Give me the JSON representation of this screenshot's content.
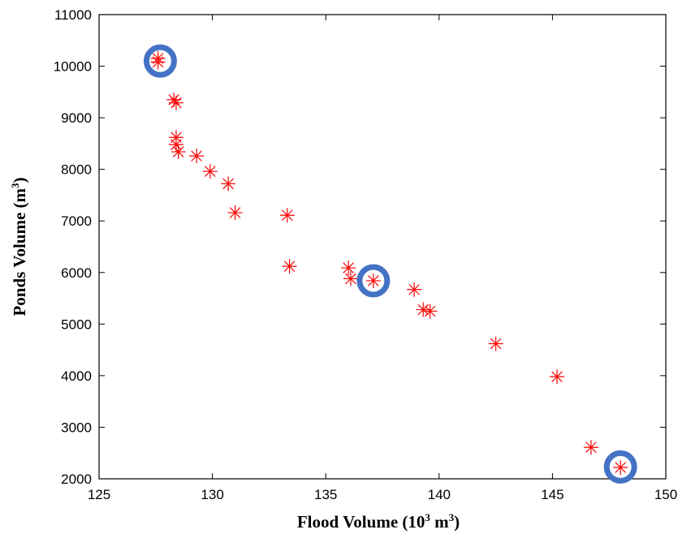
{
  "chart_data": {
    "type": "scatter",
    "xlabel_main": "Flood Volume (10",
    "xlabel_sup": "3",
    "xlabel_rest": " m",
    "xlabel_sup2": "3",
    "xlabel_end": ")",
    "ylabel_main": "Ponds Volume (m",
    "ylabel_sup": "3",
    "ylabel_end": ")",
    "xlim": [
      125,
      150
    ],
    "ylim": [
      2000,
      11000
    ],
    "xticks": [
      "125",
      "130",
      "135",
      "140",
      "145",
      "150"
    ],
    "yticks": [
      "2000",
      "3000",
      "4000",
      "5000",
      "6000",
      "7000",
      "8000",
      "9000",
      "10000",
      "11000"
    ],
    "grid": false,
    "marker": "asterisk",
    "marker_color": "#ff0000",
    "highlight_color": "#4472c4",
    "points": [
      {
        "x": 127.6,
        "y": 10150
      },
      {
        "x": 127.6,
        "y": 10080
      },
      {
        "x": 128.3,
        "y": 9350
      },
      {
        "x": 128.4,
        "y": 9290
      },
      {
        "x": 128.4,
        "y": 8620
      },
      {
        "x": 128.4,
        "y": 8480
      },
      {
        "x": 128.5,
        "y": 8340
      },
      {
        "x": 129.3,
        "y": 8260
      },
      {
        "x": 129.9,
        "y": 7960
      },
      {
        "x": 130.7,
        "y": 7720
      },
      {
        "x": 131.0,
        "y": 7160
      },
      {
        "x": 133.3,
        "y": 7110
      },
      {
        "x": 133.4,
        "y": 6120
      },
      {
        "x": 136.0,
        "y": 6090
      },
      {
        "x": 136.1,
        "y": 5880
      },
      {
        "x": 137.1,
        "y": 5840
      },
      {
        "x": 138.9,
        "y": 5670
      },
      {
        "x": 139.3,
        "y": 5280
      },
      {
        "x": 139.6,
        "y": 5250
      },
      {
        "x": 142.5,
        "y": 4620
      },
      {
        "x": 145.2,
        "y": 3980
      },
      {
        "x": 146.7,
        "y": 2610
      },
      {
        "x": 148.0,
        "y": 2220
      }
    ],
    "highlighted": [
      {
        "x": 127.7,
        "y": 10100
      },
      {
        "x": 137.1,
        "y": 5840
      },
      {
        "x": 148.0,
        "y": 2230
      }
    ]
  }
}
